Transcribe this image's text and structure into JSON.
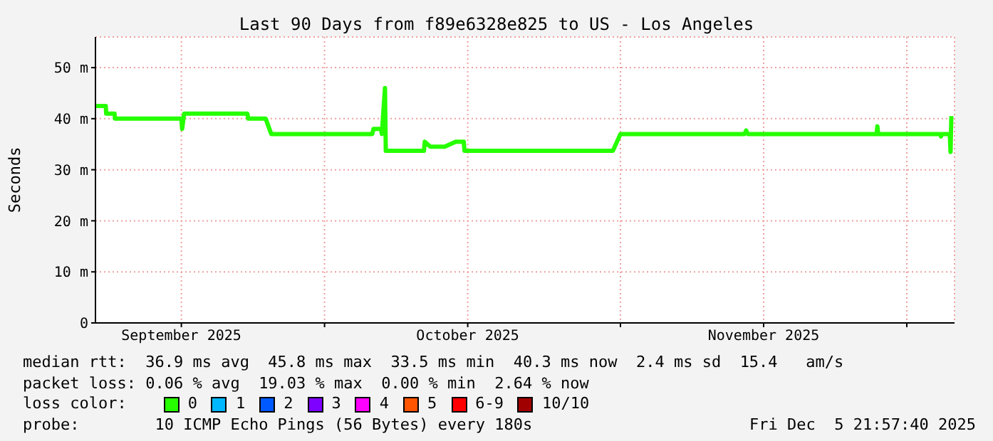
{
  "chart_data": {
    "type": "line",
    "title": "Last 90 Days from f89e6328e825 to US - Los Angeles",
    "ylabel": "Seconds",
    "x": [
      "2025-09-07T02:00",
      "2025-09-08T02:00",
      "2025-09-08T03:00",
      "2025-09-09T00:00",
      "2025-09-09T01:00",
      "2025-09-16T00:00",
      "2025-09-16T02:00",
      "2025-09-16T07:00",
      "2025-09-22T22:00",
      "2025-09-23T00:00",
      "2025-09-24T20:00",
      "2025-09-25T10:00",
      "2025-10-06T00:00",
      "2025-10-06T03:00",
      "2025-10-06T22:00",
      "2025-10-07T00:00",
      "2025-10-07T08:00",
      "2025-10-07T10:00",
      "2025-10-07T14:00",
      "2025-10-11T10:00",
      "2025-10-11T12:00",
      "2025-10-12T02:00",
      "2025-10-13T14:00",
      "2025-10-14T18:00",
      "2025-10-15T14:00",
      "2025-10-15T16:00",
      "2025-10-31T05:00",
      "2025-11-01T00:00",
      "2025-11-14T00:00",
      "2025-11-14T04:00",
      "2025-11-14T08:00",
      "2025-11-27T20:00",
      "2025-11-27T22:00",
      "2025-11-28T00:00",
      "2025-12-04T12:00",
      "2025-12-04T14:00",
      "2025-12-04T16:00",
      "2025-12-05T12:00",
      "2025-12-05T14:00",
      "2025-12-05T16:00"
    ],
    "series": [
      {
        "name": "0",
        "color": "#26ff00",
        "values": [
          42.5,
          42.5,
          41,
          41,
          40,
          40,
          38,
          41,
          41,
          40,
          40,
          37,
          37,
          38,
          38,
          37,
          46,
          33.7,
          33.7,
          33.7,
          35.5,
          34.5,
          34.5,
          35.5,
          35.5,
          33.7,
          33.7,
          37,
          37,
          37.7,
          37,
          37,
          38.5,
          37,
          37,
          36.5,
          37,
          37,
          33.5,
          40.5
        ]
      },
      {
        "name": "1",
        "color": "#00b8ff",
        "values": [
          null,
          null,
          null,
          null,
          null,
          null,
          null,
          null,
          null,
          null,
          null,
          null,
          null,
          null,
          null,
          null,
          null,
          null,
          null,
          null,
          null,
          null,
          null,
          null,
          null,
          null,
          null,
          null,
          null,
          null,
          null,
          null,
          null,
          null,
          null,
          null,
          null,
          null,
          null,
          null
        ]
      },
      {
        "name": "2",
        "color": "#0059ff",
        "values": [
          null,
          null,
          null,
          null,
          null,
          null,
          null,
          null,
          null,
          null,
          null,
          null,
          null,
          null,
          null,
          null,
          null,
          null,
          null,
          null,
          null,
          null,
          null,
          null,
          null,
          null,
          null,
          null,
          null,
          null,
          null,
          null,
          null,
          null,
          null,
          null,
          null,
          null,
          null,
          null
        ]
      },
      {
        "name": "3",
        "color": "#7e00ff",
        "values": [
          null,
          null,
          null,
          null,
          null,
          null,
          null,
          null,
          null,
          null,
          null,
          null,
          null,
          null,
          null,
          null,
          null,
          null,
          null,
          null,
          null,
          null,
          null,
          null,
          null,
          null,
          null,
          null,
          null,
          null,
          null,
          null,
          null,
          null,
          null,
          null,
          null,
          null,
          null,
          null
        ]
      },
      {
        "name": "4",
        "color": "#ff00ff",
        "values": [
          null,
          null,
          null,
          null,
          null,
          null,
          null,
          null,
          null,
          null,
          null,
          null,
          null,
          null,
          null,
          null,
          null,
          null,
          null,
          null,
          null,
          null,
          null,
          null,
          null,
          null,
          null,
          null,
          null,
          null,
          null,
          null,
          null,
          null,
          null,
          null,
          null,
          null,
          null,
          null
        ]
      },
      {
        "name": "5",
        "color": "#ff5500",
        "values": [
          null,
          null,
          null,
          null,
          null,
          null,
          null,
          null,
          null,
          null,
          null,
          null,
          null,
          null,
          null,
          null,
          null,
          null,
          null,
          null,
          null,
          null,
          null,
          null,
          null,
          null,
          null,
          null,
          null,
          null,
          null,
          null,
          null,
          null,
          null,
          null,
          null,
          null,
          null,
          null
        ]
      },
      {
        "name": "6-9",
        "color": "#ff0000",
        "values": [
          null,
          null,
          null,
          null,
          null,
          null,
          null,
          null,
          null,
          null,
          null,
          null,
          null,
          null,
          null,
          null,
          null,
          null,
          null,
          null,
          null,
          null,
          null,
          null,
          null,
          null,
          null,
          null,
          null,
          null,
          null,
          null,
          null,
          null,
          null,
          null,
          null,
          null,
          null,
          null
        ]
      },
      {
        "name": "10/10",
        "color": "#a10000",
        "values": [
          null,
          null,
          null,
          null,
          null,
          null,
          null,
          null,
          null,
          null,
          null,
          null,
          null,
          null,
          null,
          null,
          null,
          null,
          null,
          null,
          null,
          null,
          null,
          null,
          null,
          null,
          null,
          null,
          null,
          null,
          null,
          null,
          null,
          null,
          null,
          null,
          null,
          null,
          null,
          null
        ]
      }
    ],
    "xlim": [
      "2025-09-07",
      "2025-12-06"
    ],
    "xticks": [
      {
        "value": "2025-09-16",
        "label": "September 2025"
      },
      {
        "value": "2025-10-01",
        "label": null
      },
      {
        "value": "2025-10-16",
        "label": "October 2025"
      },
      {
        "value": "2025-11-01",
        "label": null
      },
      {
        "value": "2025-11-16",
        "label": "November 2025"
      },
      {
        "value": "2025-12-01",
        "label": null
      }
    ],
    "ylim": [
      0,
      56
    ],
    "yticks": [
      0,
      {
        "value": 10,
        "label": "10 m"
      },
      {
        "value": 20,
        "label": "20 m"
      },
      {
        "value": 30,
        "label": "30 m"
      },
      {
        "value": 40,
        "label": "40 m"
      },
      {
        "value": 50,
        "label": "50 m"
      }
    ],
    "grid": true,
    "legend": "bottom",
    "legend_title": "loss color:",
    "marker": "none",
    "annotations": [
      "median rtt:  36.9 ms avg  45.8 ms max  33.5 ms min  40.3 ms now  2.4 ms sd  15.4   am/s",
      "packet loss: 0.06 % avg  19.03 % max  0.00 % min  2.64 % now",
      "probe:        10 ICMP Echo Pings (56 Bytes) every 180s",
      "Fri Dec  5 21:57:40 2025"
    ]
  }
}
